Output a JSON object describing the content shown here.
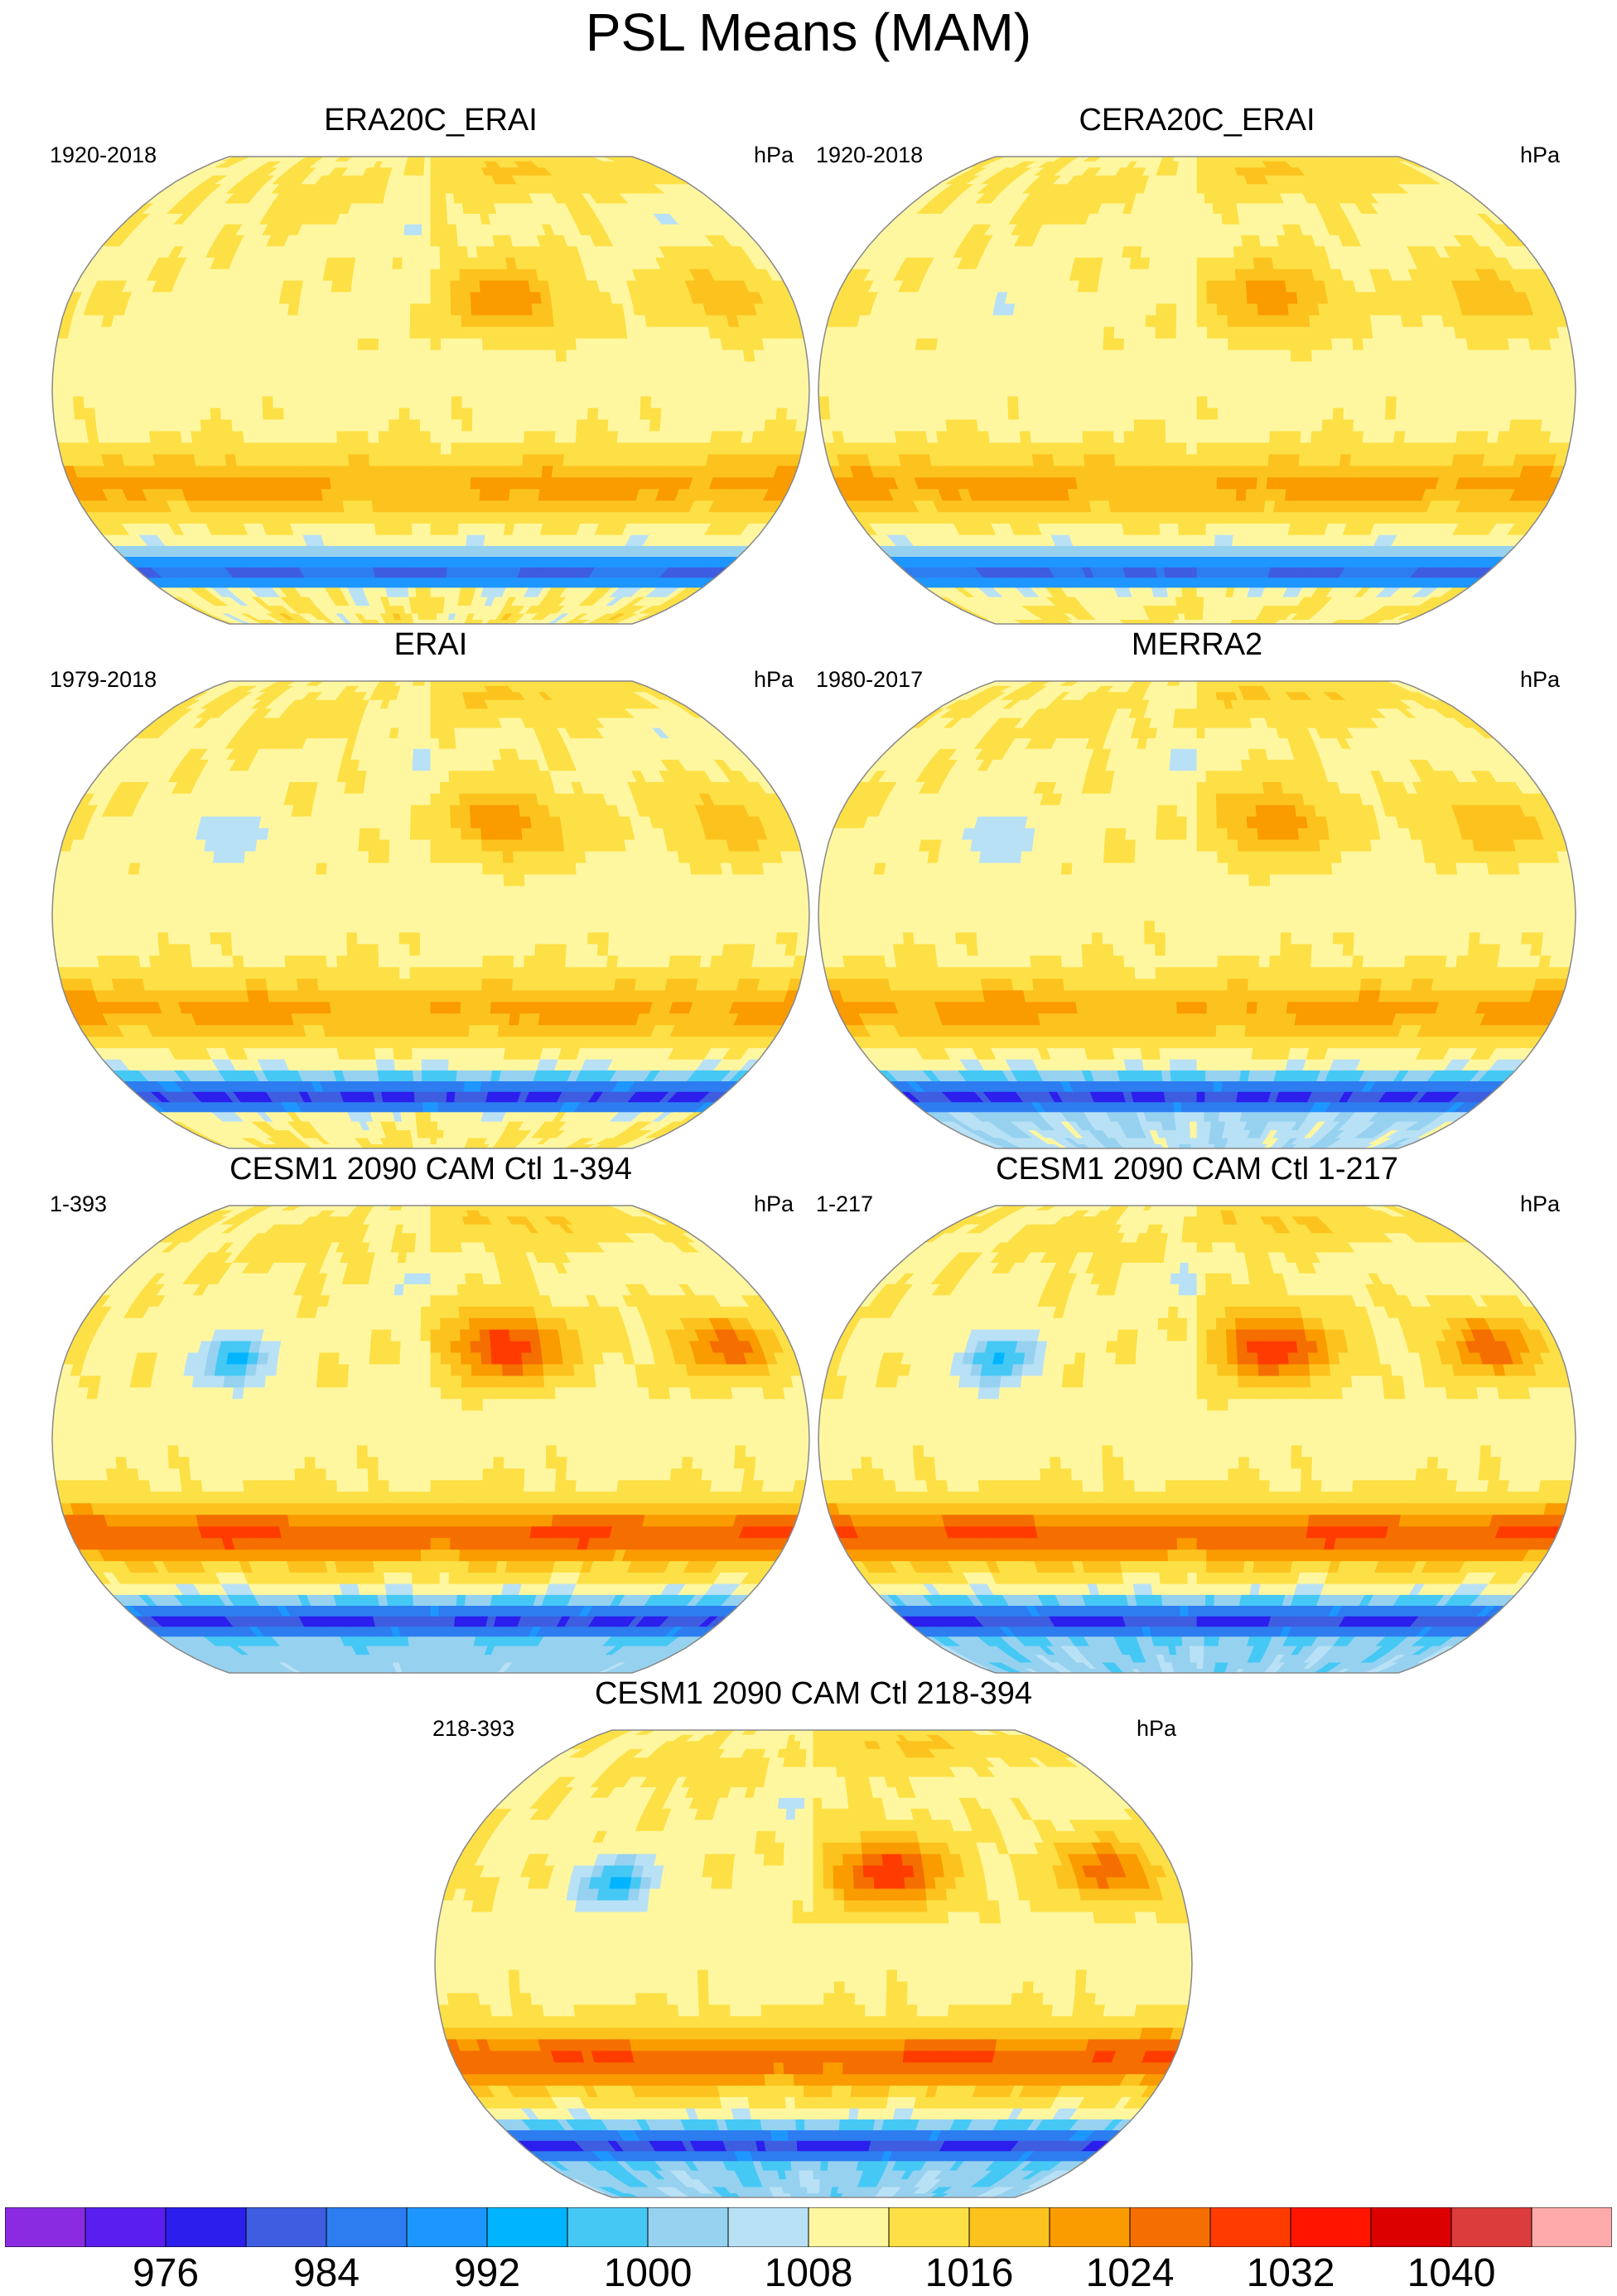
{
  "title": "PSL Means (MAM)",
  "chart_data": {
    "type": "heatmap",
    "subtype": "filled-contour global maps (Robinson projection), 7 panels",
    "variable": "PSL",
    "units": "hPa",
    "panels": [
      {
        "title": "ERA20C_ERAI",
        "period": "1920-2018",
        "units": "hPa",
        "features": {
          "subtropical_high_max": 1024,
          "southern_ocean_low_min": 984,
          "antarctic_plateau": 1012,
          "tibet_low": 1008
        }
      },
      {
        "title": "CERA20C_ERAI",
        "period": "1920-2018",
        "units": "hPa",
        "features": {
          "subtropical_high_max": 1024,
          "southern_ocean_low_min": 984,
          "antarctic_plateau": 1012,
          "tibet_low": 1008
        }
      },
      {
        "title": "ERAI",
        "period": "1979-2018",
        "units": "hPa",
        "features": {
          "subtropical_high_max": 1024,
          "southern_ocean_low_min": 980,
          "antarctic_plateau": 1012,
          "tibet_low": 1004
        }
      },
      {
        "title": "MERRA2",
        "period": "1980-2017",
        "units": "hPa",
        "features": {
          "subtropical_high_max": 1024,
          "southern_ocean_low_min": 980,
          "antarctic_plateau": 1004,
          "tibet_low": 1004
        }
      },
      {
        "title": "CESM1 2090 CAM Ctl 1-394",
        "period": "1-393",
        "units": "hPa",
        "features": {
          "subtropical_high_max": 1032,
          "southern_ocean_low_min": 980,
          "antarctic_plateau": 1000,
          "tibet_low": 996
        }
      },
      {
        "title": "CESM1 2090 CAM Ctl 1-217",
        "period": "1-217",
        "units": "hPa",
        "features": {
          "subtropical_high_max": 1032,
          "southern_ocean_low_min": 980,
          "antarctic_plateau": 1000,
          "tibet_low": 996
        }
      },
      {
        "title": "CESM1 2090 CAM Ctl 218-394",
        "period": "218-393",
        "units": "hPa",
        "features": {
          "subtropical_high_max": 1032,
          "southern_ocean_low_min": 980,
          "antarctic_plateau": 1000,
          "tibet_low": 996
        }
      }
    ],
    "colorbar": {
      "levels": [
        972,
        976,
        980,
        984,
        988,
        992,
        996,
        1000,
        1004,
        1008,
        1012,
        1016,
        1020,
        1024,
        1028,
        1032,
        1036,
        1040
      ],
      "labels": [
        "976",
        "984",
        "992",
        "1000",
        "1008",
        "1016",
        "1024",
        "1032",
        "1040"
      ],
      "colors": [
        "#8a2be2",
        "#5a1ff0",
        "#2c1eec",
        "#3e5de0",
        "#2d7df0",
        "#1e96ff",
        "#00b4ff",
        "#46c8f5",
        "#96d2f0",
        "#b9e1f5",
        "#fff7a0",
        "#fde046",
        "#fcc31e",
        "#fa9b00",
        "#f56e00",
        "#ff3c00",
        "#ff1400",
        "#dc0000",
        "#dc3c3c",
        "#ffaaaa"
      ]
    }
  }
}
